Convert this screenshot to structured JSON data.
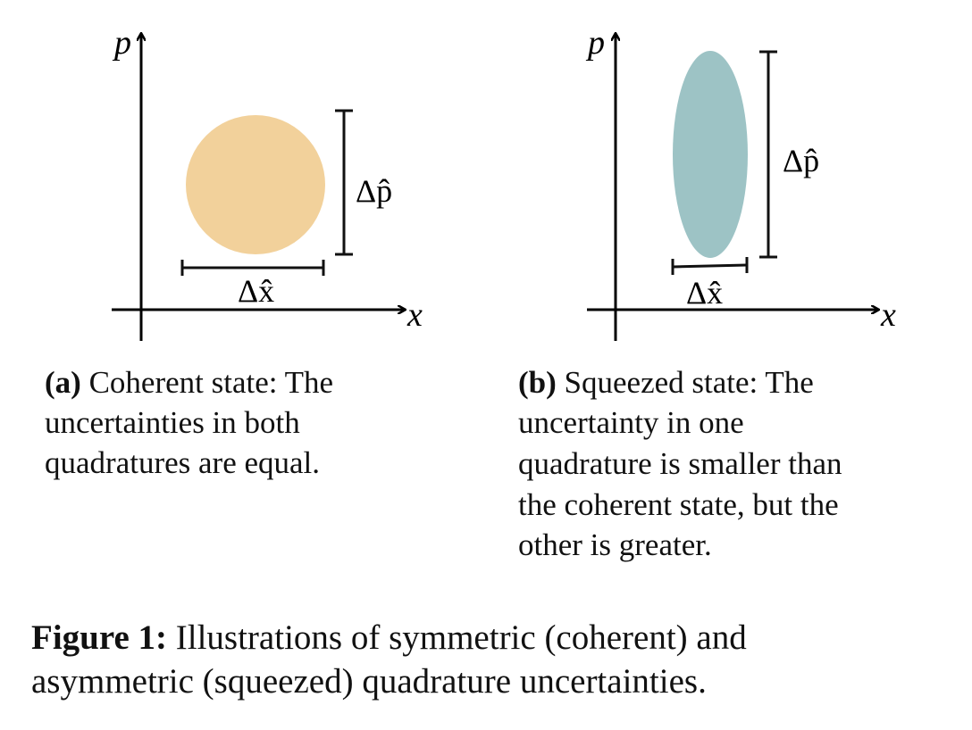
{
  "figure": {
    "panels": [
      {
        "axis_y": "p",
        "axis_x": "x",
        "delta_p": "Δp̂",
        "delta_x": "Δx̂",
        "caption": {
          "label": "(a)",
          "lines": [
            "Coherent state: The",
            "uncertainties in both",
            "quadratures are equal."
          ]
        }
      },
      {
        "axis_y": "p",
        "axis_x": "x",
        "delta_p": "Δp̂",
        "delta_x": "Δx̂",
        "caption": {
          "label": "(b)",
          "lines": [
            "Squeezed state: The",
            "uncertainty in one",
            "quadrature is smaller than",
            "the coherent state, but the",
            "other is greater."
          ]
        }
      }
    ],
    "caption": {
      "label": "Figure 1:",
      "lines": [
        "Illustrations of symmetric (coherent) and",
        "asymmetric (squeezed) quadrature uncertainties."
      ]
    }
  }
}
